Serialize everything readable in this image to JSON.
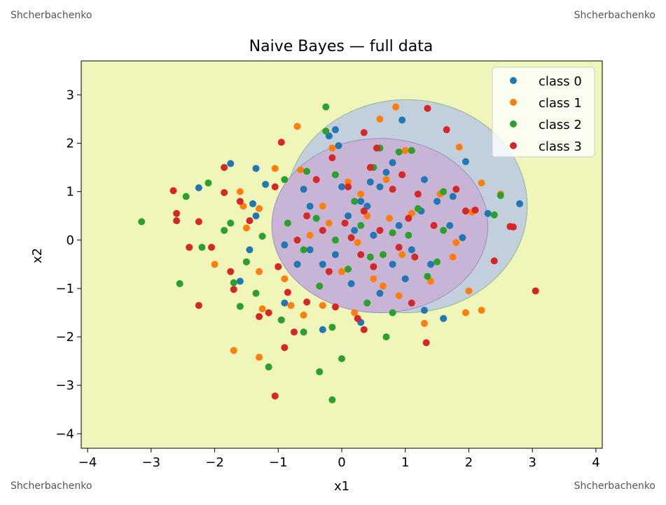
{
  "watermark": "Shcherbachenko",
  "chart_data": {
    "type": "scatter",
    "title": "Naive Bayes — full data",
    "xlabel": "x1",
    "ylabel": "x2",
    "xlim": [
      -4.1,
      4.1
    ],
    "ylim": [
      -4.3,
      3.7
    ],
    "xticks": [
      -4,
      -3,
      -2,
      -1,
      0,
      1,
      2,
      3,
      4
    ],
    "yticks": [
      -4,
      -3,
      -2,
      -1,
      0,
      1,
      2,
      3
    ],
    "xtick_labels": [
      "−4",
      "−3",
      "−2",
      "−1",
      "0",
      "1",
      "2",
      "3",
      "4"
    ],
    "ytick_labels": [
      "−4",
      "−3",
      "−2",
      "−1",
      "0",
      "1",
      "2",
      "3"
    ],
    "legend_position": "top-right",
    "background_region_color": "#f0f5b9",
    "decision_regions": [
      {
        "class": "class 0",
        "shape": "ellipse",
        "center": [
          1.02,
          0.7
        ],
        "radii": [
          1.9,
          2.2
        ],
        "color": "#c2cfdc"
      },
      {
        "class": "class 3",
        "shape": "ellipse",
        "center": [
          0.6,
          0.3
        ],
        "radii": [
          1.7,
          1.8
        ],
        "color": "#c8b4d4"
      }
    ],
    "series": [
      {
        "name": "class 0",
        "color": "#1f77b4",
        "points": [
          [
            -1.75,
            1.58
          ],
          [
            -2.25,
            1.08
          ],
          [
            -1.35,
            1.48
          ],
          [
            -1.2,
            1.15
          ],
          [
            -1.4,
            0.75
          ],
          [
            -1.35,
            0.5
          ],
          [
            -1.45,
            -0.2
          ],
          [
            -1.6,
            -0.85
          ],
          [
            -0.9,
            -1.3
          ],
          [
            -0.5,
            -0.2
          ],
          [
            -0.3,
            -0.5
          ],
          [
            -0.1,
            -0.3
          ],
          [
            0.1,
            0.5
          ],
          [
            0.2,
            0.2
          ],
          [
            0.4,
            0.7
          ],
          [
            0.6,
            1.1
          ],
          [
            0.8,
            1.6
          ],
          [
            0.95,
            2.48
          ],
          [
            1.3,
            1.25
          ],
          [
            1.5,
            0.8
          ],
          [
            1.7,
            0.3
          ],
          [
            1.9,
            0.05
          ],
          [
            2.3,
            0.55
          ],
          [
            2.8,
            0.75
          ],
          [
            1.95,
            1.62
          ],
          [
            1.6,
            -1.62
          ],
          [
            1.3,
            -1.45
          ],
          [
            1.0,
            -0.8
          ],
          [
            0.6,
            -1.1
          ],
          [
            0.3,
            -1.7
          ],
          [
            -0.3,
            -1.85
          ],
          [
            -0.7,
            -0.5
          ],
          [
            -0.9,
            -0.1
          ],
          [
            -0.5,
            0.7
          ],
          [
            -0.2,
            2.15
          ],
          [
            -0.05,
            1.95
          ],
          [
            -0.1,
            2.28
          ],
          [
            0.3,
            0.8
          ],
          [
            0.5,
            0.1
          ],
          [
            0.9,
            0.3
          ],
          [
            1.1,
            -0.2
          ],
          [
            1.25,
            0.6
          ],
          [
            0.7,
            1.4
          ],
          [
            0.45,
            1.2
          ],
          [
            0.0,
            1.1
          ],
          [
            -0.6,
            1.05
          ],
          [
            0.15,
            -0.9
          ],
          [
            0.8,
            -0.5
          ],
          [
            1.4,
            -0.5
          ],
          [
            1.75,
            0.9
          ]
        ]
      },
      {
        "name": "class 1",
        "color": "#ff7f0e",
        "points": [
          [
            -1.7,
            -2.28
          ],
          [
            -1.3,
            -2.42
          ],
          [
            -1.25,
            -1.42
          ],
          [
            -2.0,
            -0.5
          ],
          [
            -1.5,
            0.25
          ],
          [
            -1.6,
            1.0
          ],
          [
            -1.05,
            1.48
          ],
          [
            -0.7,
            2.35
          ],
          [
            0.6,
            2.5
          ],
          [
            0.85,
            2.75
          ],
          [
            1.85,
            1.92
          ],
          [
            2.2,
            1.18
          ],
          [
            2.5,
            0.95
          ],
          [
            2.05,
            0.58
          ],
          [
            1.8,
            -0.05
          ],
          [
            2.0,
            -1.05
          ],
          [
            2.2,
            -1.45
          ],
          [
            1.95,
            -1.5
          ],
          [
            1.3,
            -1.72
          ],
          [
            0.9,
            -1.15
          ],
          [
            0.2,
            -1.5
          ],
          [
            -0.3,
            -1.35
          ],
          [
            -0.6,
            -1.55
          ],
          [
            -0.8,
            -1.35
          ],
          [
            -0.9,
            -0.8
          ],
          [
            -1.3,
            -0.65
          ],
          [
            -1.5,
            -0.45
          ],
          [
            -2.4,
            -0.15
          ],
          [
            -1.55,
            0.7
          ],
          [
            -1.3,
            0.65
          ],
          [
            -0.3,
            0.7
          ],
          [
            0.1,
            1.2
          ],
          [
            0.4,
            0.5
          ],
          [
            0.7,
            1.25
          ],
          [
            1.1,
            0.55
          ],
          [
            1.55,
            0.95
          ],
          [
            1.75,
            -0.35
          ],
          [
            0.95,
            -0.3
          ],
          [
            0.5,
            -0.8
          ],
          [
            0.0,
            -0.65
          ],
          [
            -0.5,
            0.1
          ],
          [
            0.25,
            -0.05
          ],
          [
            0.75,
            0.45
          ],
          [
            -0.15,
            1.9
          ],
          [
            -0.65,
            1.45
          ],
          [
            1.0,
            1.85
          ],
          [
            1.4,
            -0.85
          ],
          [
            0.65,
            -0.95
          ],
          [
            -0.2,
            0.35
          ],
          [
            0.3,
            0.95
          ]
        ]
      },
      {
        "name": "class 2",
        "color": "#2ca02c",
        "points": [
          [
            -3.15,
            0.38
          ],
          [
            -2.55,
            -0.9
          ],
          [
            -2.2,
            -0.15
          ],
          [
            -2.1,
            1.18
          ],
          [
            -2.45,
            0.9
          ],
          [
            -1.85,
            0.2
          ],
          [
            -1.75,
            0.35
          ],
          [
            -1.7,
            -0.88
          ],
          [
            -1.6,
            -1.37
          ],
          [
            -1.35,
            -1.1
          ],
          [
            -1.15,
            -2.62
          ],
          [
            -0.35,
            -2.72
          ],
          [
            -0.15,
            -3.3
          ],
          [
            0.0,
            -2.45
          ],
          [
            0.7,
            -2.0
          ],
          [
            0.8,
            -1.5
          ],
          [
            1.35,
            -0.75
          ],
          [
            1.5,
            -0.45
          ],
          [
            1.6,
            0.2
          ],
          [
            1.6,
            1.0
          ],
          [
            2.5,
            0.92
          ],
          [
            2.4,
            0.52
          ],
          [
            1.1,
            1.85
          ],
          [
            0.9,
            1.82
          ],
          [
            0.6,
            1.9
          ],
          [
            -0.25,
            2.25
          ],
          [
            -0.25,
            2.75
          ],
          [
            -0.55,
            1.42
          ],
          [
            -0.9,
            1.25
          ],
          [
            -1.25,
            0.08
          ],
          [
            -1.5,
            -0.45
          ],
          [
            -0.95,
            -1.65
          ],
          [
            -0.6,
            -1.9
          ],
          [
            -0.15,
            -1.8
          ],
          [
            0.4,
            -1.3
          ],
          [
            0.1,
            -0.6
          ],
          [
            0.45,
            -0.35
          ],
          [
            0.8,
            0.15
          ],
          [
            1.05,
            0.1
          ],
          [
            0.3,
            0.3
          ],
          [
            -0.1,
            0.0
          ],
          [
            -0.6,
            -0.2
          ],
          [
            -0.85,
            0.35
          ],
          [
            -0.4,
            0.45
          ],
          [
            0.2,
            0.8
          ],
          [
            0.5,
            1.5
          ],
          [
            -0.1,
            1.35
          ],
          [
            1.2,
            0.65
          ],
          [
            0.65,
            -0.3
          ],
          [
            -0.35,
            -0.95
          ]
        ]
      },
      {
        "name": "class 3",
        "color": "#d62728",
        "points": [
          [
            -2.65,
            1.02
          ],
          [
            -2.6,
            0.55
          ],
          [
            -2.6,
            0.4
          ],
          [
            -2.25,
            0.38
          ],
          [
            -2.4,
            -0.15
          ],
          [
            -2.05,
            -0.15
          ],
          [
            -1.75,
            -0.65
          ],
          [
            -1.7,
            -1.02
          ],
          [
            -2.25,
            -1.35
          ],
          [
            -1.3,
            -1.58
          ],
          [
            -1.15,
            -1.5
          ],
          [
            -1.05,
            -3.22
          ],
          [
            -0.9,
            -2.22
          ],
          [
            -0.75,
            -1.9
          ],
          [
            -0.95,
            2.02
          ],
          [
            -1.85,
            1.5
          ],
          [
            -1.85,
            0.98
          ],
          [
            -1.6,
            0.8
          ],
          [
            0.35,
            2.22
          ],
          [
            0.55,
            1.9
          ],
          [
            1.35,
            2.72
          ],
          [
            1.65,
            2.28
          ],
          [
            1.95,
            0.6
          ],
          [
            2.65,
            0.28
          ],
          [
            2.7,
            0.27
          ],
          [
            2.4,
            -0.43
          ],
          [
            3.05,
            -1.05
          ],
          [
            1.33,
            -2.12
          ],
          [
            1.1,
            -1.3
          ],
          [
            0.35,
            -1.85
          ],
          [
            0.25,
            -1.62
          ],
          [
            -0.1,
            -1.38
          ],
          [
            -0.55,
            -1.28
          ],
          [
            -0.85,
            -1.08
          ],
          [
            -1.0,
            -0.55
          ],
          [
            -0.7,
            0.0
          ],
          [
            -0.3,
            0.2
          ],
          [
            0.05,
            0.35
          ],
          [
            0.35,
            0.6
          ],
          [
            0.6,
            0.2
          ],
          [
            0.9,
            -0.15
          ],
          [
            1.15,
            -0.35
          ],
          [
            1.45,
            0.3
          ],
          [
            1.2,
            0.95
          ],
          [
            0.8,
            1.05
          ],
          [
            0.45,
            1.5
          ],
          [
            0.1,
            1.1
          ],
          [
            -0.4,
            1.25
          ],
          [
            -0.55,
            0.5
          ],
          [
            0.3,
            -0.3
          ],
          [
            0.15,
            0.05
          ],
          [
            -0.2,
            -0.65
          ],
          [
            0.5,
            -0.55
          ],
          [
            1.05,
            0.45
          ],
          [
            1.8,
            1.05
          ],
          [
            2.1,
            0.62
          ],
          [
            -0.15,
            1.7
          ],
          [
            0.95,
            1.35
          ],
          [
            -1.45,
            0.4
          ],
          [
            -1.05,
            1.1
          ]
        ]
      }
    ]
  }
}
